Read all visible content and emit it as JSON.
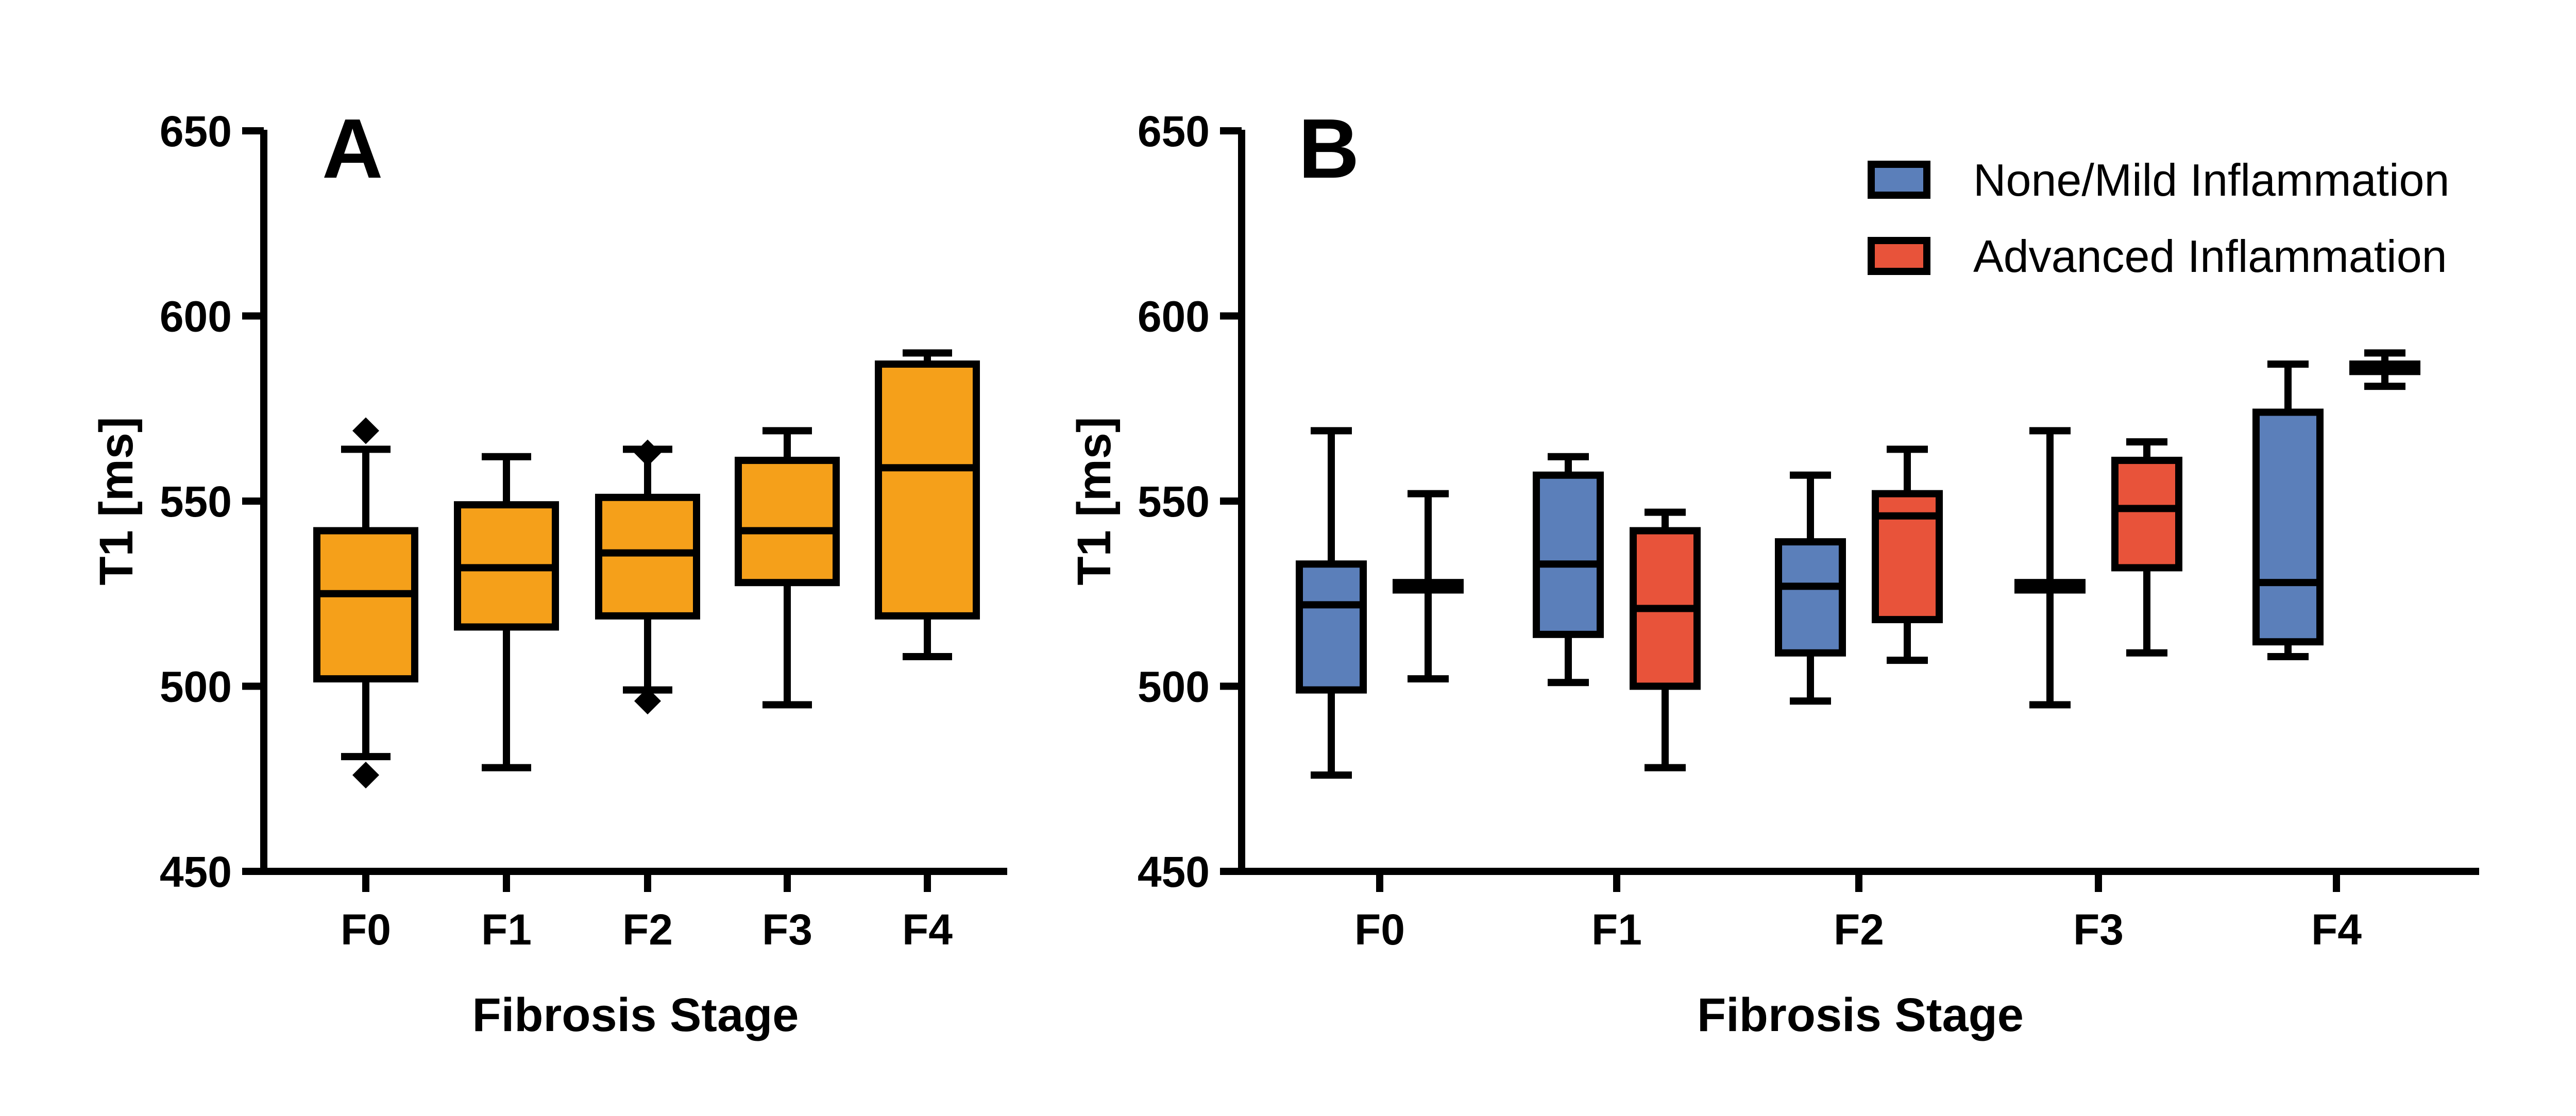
{
  "chart_data": [
    {
      "type": "box",
      "panel_label": "A",
      "xlabel": "Fibrosis Stage",
      "ylabel": "T1 [ms]",
      "ylim": [
        450,
        650
      ],
      "yticks": [
        450,
        500,
        550,
        600,
        650
      ],
      "categories": [
        "F0",
        "F1",
        "F2",
        "F3",
        "F4"
      ],
      "color": "#F5A01A",
      "boxes": [
        {
          "category": "F0",
          "whisker_low": 481,
          "q1": 502,
          "median": 525,
          "q3": 542,
          "whisker_high": 564,
          "outliers": [
            476,
            569
          ]
        },
        {
          "category": "F1",
          "whisker_low": 478,
          "q1": 516,
          "median": 532,
          "q3": 549,
          "whisker_high": 562,
          "outliers": []
        },
        {
          "category": "F2",
          "whisker_low": 499,
          "q1": 519,
          "median": 536,
          "q3": 551,
          "whisker_high": 564,
          "outliers": [
            496,
            563
          ]
        },
        {
          "category": "F3",
          "whisker_low": 495,
          "q1": 528,
          "median": 542,
          "q3": 561,
          "whisker_high": 569,
          "outliers": []
        },
        {
          "category": "F4",
          "whisker_low": 508,
          "q1": 519,
          "median": 559,
          "q3": 587,
          "whisker_high": 590,
          "outliers": []
        }
      ]
    },
    {
      "type": "box",
      "panel_label": "B",
      "xlabel": "Fibrosis Stage",
      "ylabel": "T1 [ms]",
      "ylim": [
        450,
        650
      ],
      "yticks": [
        450,
        500,
        550,
        600,
        650
      ],
      "categories": [
        "F0",
        "F1",
        "F2",
        "F3",
        "F4"
      ],
      "legend_position": "top-right",
      "series": [
        {
          "name": "None/Mild Inflammation",
          "color": "#5B7FBA",
          "boxes": [
            {
              "category": "F0",
              "whisker_low": 476,
              "q1": 499,
              "median": 522,
              "q3": 533,
              "whisker_high": 569
            },
            {
              "category": "F1",
              "whisker_low": 501,
              "q1": 514,
              "median": 533,
              "q3": 557,
              "whisker_high": 562
            },
            {
              "category": "F2",
              "whisker_low": 496,
              "q1": 509,
              "median": 527,
              "q3": 539,
              "whisker_high": 557
            },
            {
              "category": "F3",
              "whisker_low": 495,
              "q1": 526,
              "median": 527,
              "q3": 528,
              "whisker_high": 569
            },
            {
              "category": "F4",
              "whisker_low": 508,
              "q1": 512,
              "median": 528,
              "q3": 574,
              "whisker_high": 587
            }
          ]
        },
        {
          "name": "Advanced Inflammation",
          "color": "#E8533A",
          "boxes": [
            {
              "category": "F0",
              "whisker_low": 502,
              "q1": 526,
              "median": 527,
              "q3": 528,
              "whisker_high": 552
            },
            {
              "category": "F1",
              "whisker_low": 478,
              "q1": 500,
              "median": 521,
              "q3": 542,
              "whisker_high": 547
            },
            {
              "category": "F2",
              "whisker_low": 507,
              "q1": 518,
              "median": 546,
              "q3": 552,
              "whisker_high": 564
            },
            {
              "category": "F3",
              "whisker_low": 509,
              "q1": 532,
              "median": 548,
              "q3": 561,
              "whisker_high": 566
            },
            {
              "category": "F4",
              "whisker_low": 581,
              "q1": 585,
              "median": 586,
              "q3": 587,
              "whisker_high": 590
            }
          ]
        }
      ]
    }
  ]
}
